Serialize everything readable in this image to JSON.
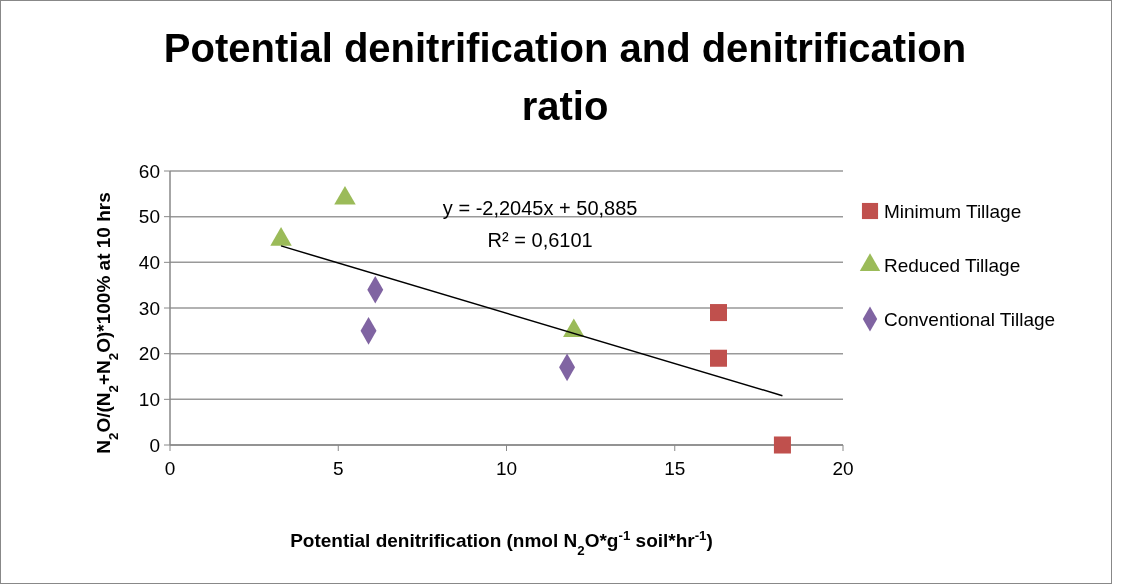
{
  "chart_data": {
    "type": "scatter",
    "title": "Potential denitrification and denitrification ratio",
    "xlabel": "Potential denitrification (nmol N$_{2}$O*g$^{-1}$ soil*hr$^{-1}$)",
    "ylabel": "N$_{2}$O/(N$_{2}$+N$_{2}$O)*100%  at 10 hrs",
    "xlim": [
      0,
      20
    ],
    "xticks": [
      0,
      5,
      10,
      15,
      20
    ],
    "ylim": [
      0,
      60
    ],
    "yticks": [
      0,
      10,
      20,
      30,
      40,
      50,
      60
    ],
    "grid": "y",
    "legend": "right",
    "annotations": [
      "y = -2,2045x + 50,885",
      "R² = 0,6101"
    ],
    "series": [
      {
        "name": "Minimum Tillage",
        "color": "#c0504d",
        "marker": "square",
        "x": [
          16.3,
          16.3,
          18.2
        ],
        "values": [
          29,
          19,
          0
        ]
      },
      {
        "name": "Reduced Tillage",
        "color": "#9bbb59",
        "marker": "triangle",
        "x": [
          3.3,
          5.2,
          12
        ],
        "values": [
          45,
          54,
          25
        ]
      },
      {
        "name": "Conventional Tillage",
        "color": "#8064a2",
        "marker": "diamond",
        "x": [
          6.1,
          5.9,
          11.8
        ],
        "values": [
          34,
          25,
          17
        ]
      },
      {
        "type": "line",
        "color": "#000000",
        "x": [
          3.3,
          18.2
        ],
        "values": [
          43.6,
          10.8
        ]
      }
    ]
  }
}
